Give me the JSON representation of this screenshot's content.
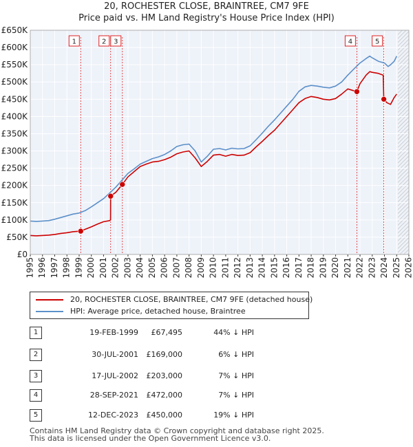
{
  "chart_data": {
    "type": "line",
    "title": "20, ROCHESTER CLOSE, BRAINTREE, CM7 9FE",
    "subtitle": "Price paid vs. HM Land Registry's House Price Index (HPI)",
    "xlim": [
      1995,
      2026
    ],
    "ylim": [
      0,
      650000
    ],
    "yticks": [
      0,
      50000,
      100000,
      150000,
      200000,
      250000,
      300000,
      350000,
      400000,
      450000,
      500000,
      550000,
      600000,
      650000
    ],
    "ytick_labels": [
      "£0",
      "£50K",
      "£100K",
      "£150K",
      "£200K",
      "£250K",
      "£300K",
      "£350K",
      "£400K",
      "£450K",
      "£500K",
      "£550K",
      "£600K",
      "£650K"
    ],
    "xticks": [
      1995,
      1996,
      1997,
      1998,
      1999,
      2000,
      2001,
      2002,
      2003,
      2004,
      2005,
      2006,
      2007,
      2008,
      2009,
      2010,
      2011,
      2012,
      2013,
      2014,
      2015,
      2016,
      2017,
      2018,
      2019,
      2020,
      2021,
      2022,
      2023,
      2024,
      2025,
      2026
    ],
    "xtick_labels": [
      "1995",
      "1996",
      "1997",
      "1998",
      "1999",
      "2000",
      "2001",
      "2002",
      "2003",
      "2004",
      "2005",
      "2006",
      "2007",
      "2008",
      "2009",
      "2010",
      "2011",
      "2012",
      "2013",
      "2014",
      "2015",
      "2016",
      "2017",
      "2018",
      "2019",
      "2020",
      "2021",
      "2022",
      "2023",
      "2024",
      "2025",
      "2026"
    ],
    "grid": true,
    "future_hatch_from": 2025.1,
    "series": [
      {
        "name": "20, ROCHESTER CLOSE, BRAINTREE, CM7 9FE (detached house)",
        "color": "#cc0000",
        "x": [
          1995.0,
          1995.5,
          1996.0,
          1996.5,
          1997.0,
          1997.5,
          1998.0,
          1998.5,
          1999.13,
          1999.5,
          2000.0,
          2000.5,
          2001.0,
          2001.5,
          2001.57,
          2001.58,
          2002.0,
          2002.54,
          2003.0,
          2003.5,
          2004.0,
          2004.5,
          2005.0,
          2005.5,
          2006.0,
          2006.5,
          2007.0,
          2007.5,
          2008.0,
          2008.5,
          2009.0,
          2009.5,
          2010.0,
          2010.5,
          2011.0,
          2011.5,
          2012.0,
          2012.5,
          2013.0,
          2013.5,
          2014.0,
          2014.5,
          2015.0,
          2015.5,
          2016.0,
          2016.5,
          2017.0,
          2017.5,
          2018.0,
          2018.5,
          2019.0,
          2019.5,
          2020.0,
          2020.5,
          2021.0,
          2021.74,
          2022.0,
          2022.5,
          2022.8,
          2023.0,
          2023.5,
          2023.9,
          2023.95,
          2024.2,
          2024.5,
          2024.8,
          2025.0
        ],
        "values": [
          55000,
          54000,
          55000,
          56000,
          58000,
          61000,
          63000,
          66000,
          67495,
          73000,
          80000,
          88000,
          95000,
          98000,
          100000,
          169000,
          180000,
          203000,
          225000,
          240000,
          255000,
          262000,
          268000,
          270000,
          275000,
          282000,
          292000,
          297000,
          300000,
          280000,
          255000,
          270000,
          288000,
          290000,
          285000,
          290000,
          287000,
          288000,
          295000,
          312000,
          328000,
          345000,
          360000,
          380000,
          400000,
          420000,
          440000,
          452000,
          458000,
          455000,
          450000,
          448000,
          452000,
          465000,
          480000,
          472000,
          495000,
          520000,
          530000,
          528000,
          525000,
          520000,
          450000,
          440000,
          435000,
          455000,
          465000
        ]
      },
      {
        "name": "HPI: Average price, detached house, Braintree",
        "color": "#5b8fc9",
        "x": [
          1995.0,
          1995.5,
          1996.0,
          1996.5,
          1997.0,
          1997.5,
          1998.0,
          1998.5,
          1999.0,
          1999.5,
          2000.0,
          2000.5,
          2001.0,
          2001.5,
          2002.0,
          2002.5,
          2003.0,
          2003.5,
          2004.0,
          2004.5,
          2005.0,
          2005.5,
          2006.0,
          2006.5,
          2007.0,
          2007.5,
          2008.0,
          2008.5,
          2009.0,
          2009.5,
          2010.0,
          2010.5,
          2011.0,
          2011.5,
          2012.0,
          2012.5,
          2013.0,
          2013.5,
          2014.0,
          2014.5,
          2015.0,
          2015.5,
          2016.0,
          2016.5,
          2017.0,
          2017.5,
          2018.0,
          2018.5,
          2019.0,
          2019.5,
          2020.0,
          2020.5,
          2021.0,
          2021.5,
          2022.0,
          2022.5,
          2022.8,
          2023.0,
          2023.5,
          2024.0,
          2024.3,
          2024.5,
          2024.8,
          2025.0
        ],
        "values": [
          97000,
          96000,
          97000,
          98000,
          102000,
          107000,
          112000,
          117000,
          120000,
          127000,
          138000,
          150000,
          162000,
          178000,
          195000,
          215000,
          235000,
          248000,
          262000,
          270000,
          278000,
          283000,
          290000,
          300000,
          313000,
          318000,
          320000,
          300000,
          268000,
          285000,
          305000,
          307000,
          303000,
          308000,
          306000,
          307000,
          315000,
          333000,
          352000,
          372000,
          390000,
          410000,
          430000,
          450000,
          473000,
          486000,
          490000,
          488000,
          485000,
          483000,
          488000,
          500000,
          520000,
          538000,
          555000,
          568000,
          575000,
          570000,
          560000,
          555000,
          545000,
          550000,
          560000,
          575000
        ]
      }
    ],
    "sales": [
      {
        "label": "1",
        "x": 1999.13,
        "y": 67495
      },
      {
        "label": "2",
        "x": 2001.58,
        "y": 169000
      },
      {
        "label": "3",
        "x": 2002.54,
        "y": 203000
      },
      {
        "label": "4",
        "x": 2021.74,
        "y": 472000
      },
      {
        "label": "5",
        "x": 2023.95,
        "y": 450000
      }
    ]
  },
  "legend": {
    "property_label": "20, ROCHESTER CLOSE, BRAINTREE, CM7 9FE (detached house)",
    "hpi_label": "HPI: Average price, detached house, Braintree"
  },
  "transactions": [
    {
      "num": "1",
      "date": "19-FEB-1999",
      "price": "£67,495",
      "hpi": "44% ↓ HPI"
    },
    {
      "num": "2",
      "date": "30-JUL-2001",
      "price": "£169,000",
      "hpi": "6% ↓ HPI"
    },
    {
      "num": "3",
      "date": "17-JUL-2002",
      "price": "£203,000",
      "hpi": "7% ↓ HPI"
    },
    {
      "num": "4",
      "date": "28-SEP-2021",
      "price": "£472,000",
      "hpi": "7% ↓ HPI"
    },
    {
      "num": "5",
      "date": "12-DEC-2023",
      "price": "£450,000",
      "hpi": "19% ↓ HPI"
    }
  ],
  "footer": {
    "line1": "Contains HM Land Registry data © Crown copyright and database right 2025.",
    "line2": "This data is licensed under the Open Government Licence v3.0."
  }
}
